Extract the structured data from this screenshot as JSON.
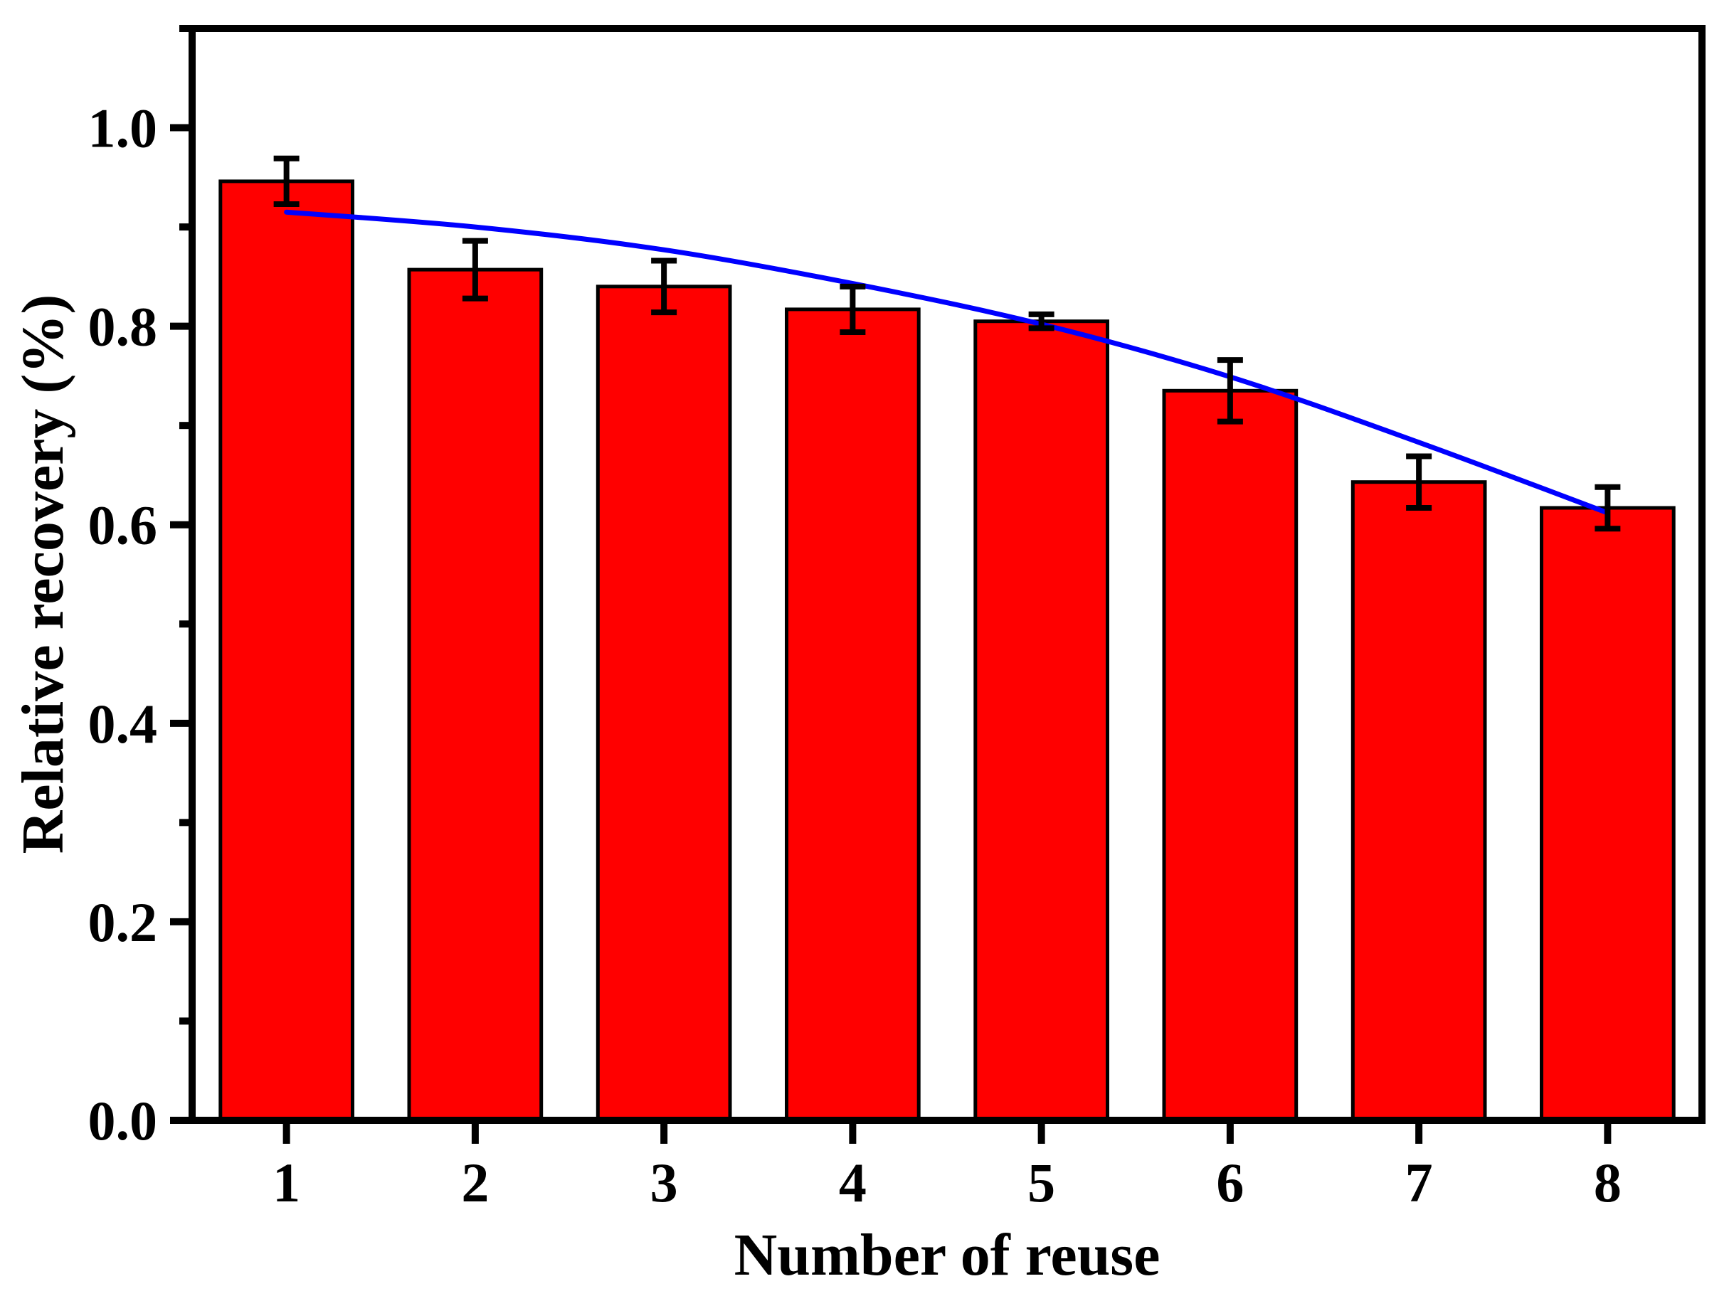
{
  "figure": {
    "background_color": "#ffffff",
    "axis_color": "#000000"
  },
  "chart_data": {
    "type": "bar",
    "title": "",
    "xlabel": "Number of reuse",
    "ylabel": "Relative recovery (%)",
    "categories": [
      "1",
      "2",
      "3",
      "4",
      "5",
      "6",
      "7",
      "8"
    ],
    "series": [
      {
        "name": "relative-recovery-bars",
        "type": "bar",
        "color": "#ff0000",
        "edge_color": "#000000",
        "values": [
          0.946,
          0.857,
          0.84,
          0.817,
          0.805,
          0.735,
          0.643,
          0.617
        ],
        "errors": [
          0.023,
          0.029,
          0.026,
          0.023,
          0.007,
          0.031,
          0.026,
          0.021
        ],
        "error_color": "#000000"
      },
      {
        "name": "trend-curve",
        "type": "line",
        "color": "#0000ff",
        "values": [
          0.915,
          0.9,
          0.877,
          0.843,
          0.802,
          0.749,
          0.683,
          0.612
        ]
      }
    ],
    "ylim": [
      0,
      1.1
    ],
    "yticks_major": [
      0.0,
      0.2,
      0.4,
      0.6,
      0.8,
      1.0
    ],
    "ytick_labels": [
      "0.0",
      "0.2",
      "0.4",
      "0.6",
      "0.8",
      "1.0"
    ],
    "yticks_minor": [
      0.1,
      0.3,
      0.5,
      0.7,
      0.9,
      1.1
    ],
    "xtick_labels": [
      "1",
      "2",
      "3",
      "4",
      "5",
      "6",
      "7",
      "8"
    ],
    "bar_width_fraction": 0.7,
    "grid": false,
    "legend_position": "none"
  }
}
